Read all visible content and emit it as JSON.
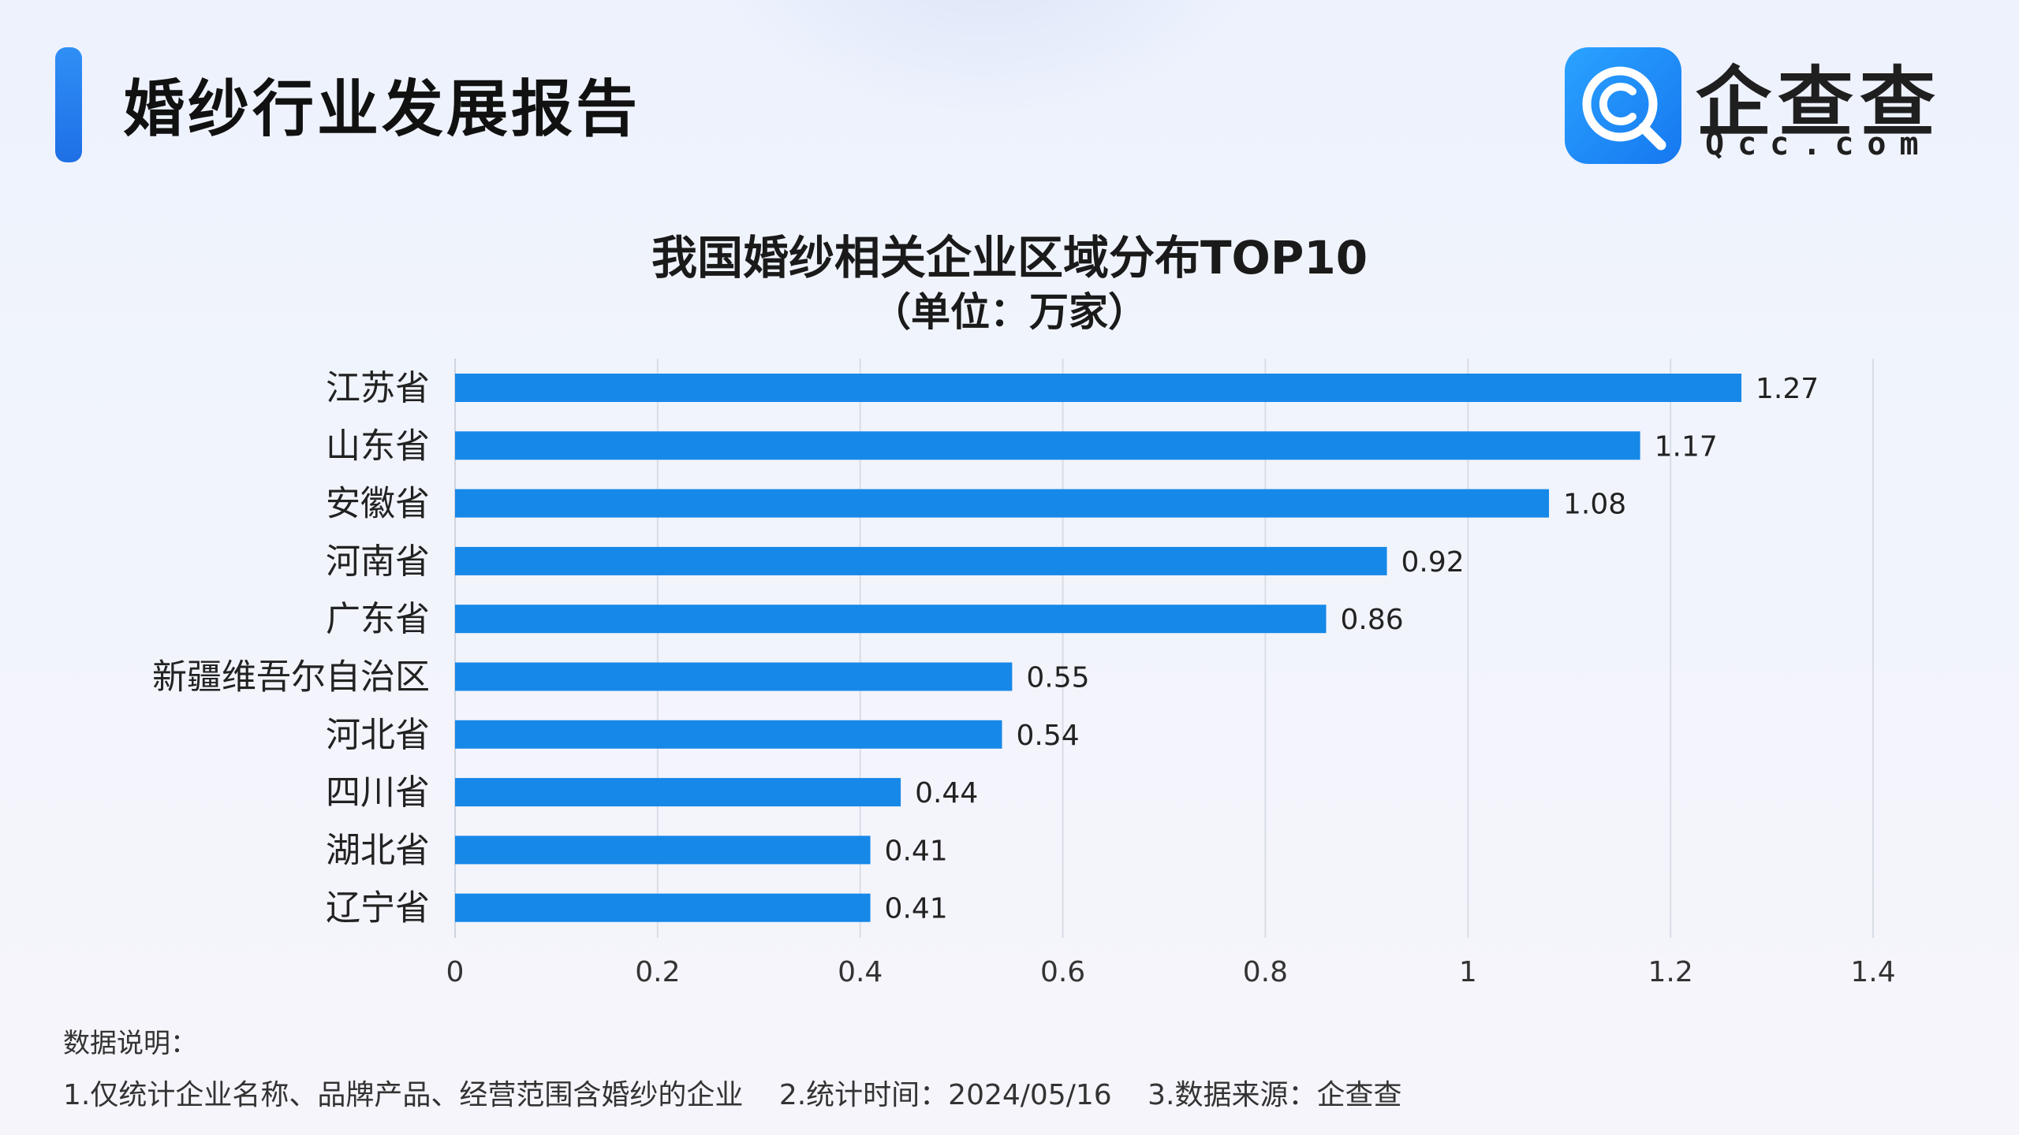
{
  "header": {
    "title": "婚纱行业发展报告",
    "logo_name": "企查查",
    "logo_domain": "Qcc.com",
    "logo_icon": "qcc-magnifier-icon",
    "accent_color": "#1f7ef0"
  },
  "chart_data": {
    "type": "bar",
    "orientation": "horizontal",
    "title": "我国婚纱相关企业区域分布TOP10",
    "subtitle": "（单位：万家）",
    "categories": [
      "江苏省",
      "山东省",
      "安徽省",
      "河南省",
      "广东省",
      "新疆维吾尔自治区",
      "河北省",
      "四川省",
      "湖北省",
      "辽宁省"
    ],
    "values": [
      1.27,
      1.17,
      1.08,
      0.92,
      0.86,
      0.55,
      0.54,
      0.44,
      0.41,
      0.41
    ],
    "value_labels": [
      "1.27",
      "1.17",
      "1.08",
      "0.92",
      "0.86",
      "0.55",
      "0.54",
      "0.44",
      "0.41",
      "0.41"
    ],
    "xlim": [
      0,
      1.4
    ],
    "xticks": [
      0,
      0.2,
      0.4,
      0.6,
      0.8,
      1,
      1.2,
      1.4
    ],
    "xtick_labels": [
      "0",
      "0.2",
      "0.4",
      "0.6",
      "0.8",
      "1",
      "1.2",
      "1.4"
    ],
    "grid": "vertical",
    "legend": "none",
    "bar_color": "#1688e8"
  },
  "notes": {
    "heading": "数据说明：",
    "items": [
      "1.仅统计企业名称、品牌产品、经营范围含婚纱的企业",
      "2.统计时间：2024/05/16",
      "3.数据来源：企查查"
    ]
  }
}
